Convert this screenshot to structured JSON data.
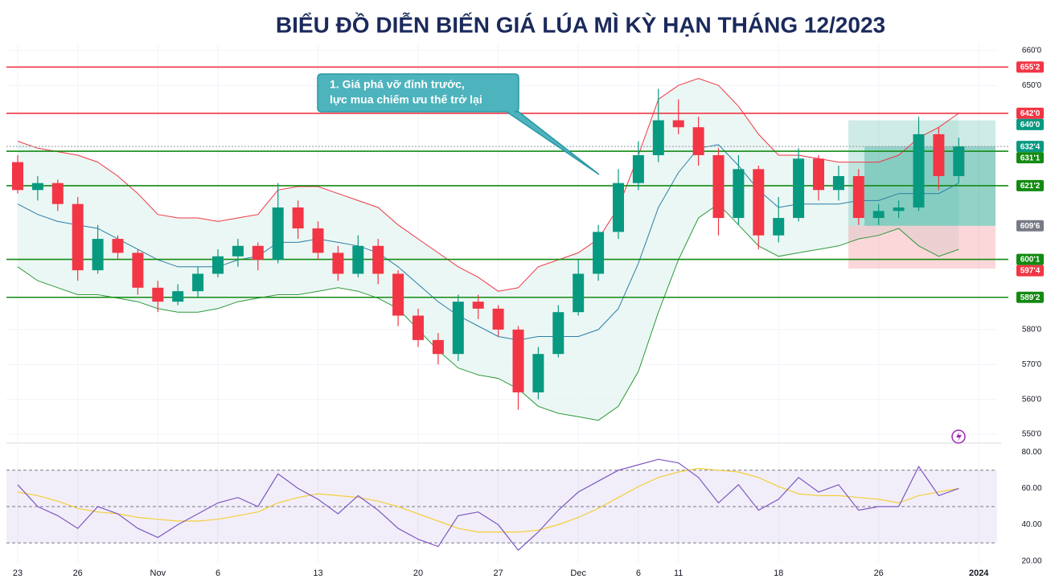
{
  "chart_data": {
    "type": "candlestick",
    "title": "BIỂU ĐỒ DIỄN BIẾN GIÁ LÚA MÌ KỲ HẠN THÁNG 12/2023",
    "annotation": [
      "1. Giá phá vỡ đỉnh trước,",
      "lực mua chiếm ưu thế trở lại"
    ],
    "categories": [
      "23",
      null,
      null,
      "26",
      null,
      null,
      null,
      "Nov",
      null,
      null,
      "6",
      null,
      null,
      null,
      null,
      "13",
      null,
      null,
      null,
      null,
      "20",
      null,
      null,
      null,
      "27",
      null,
      null,
      null,
      "Dec",
      null,
      null,
      "6",
      null,
      "11",
      null,
      null,
      null,
      null,
      "18",
      null,
      null,
      null,
      null,
      "26",
      null,
      null,
      null,
      null,
      "2024",
      null
    ],
    "open": [
      628,
      620,
      622,
      616,
      597,
      606,
      602,
      592,
      588,
      591,
      596,
      601,
      604,
      600,
      615,
      609,
      602,
      596,
      604,
      596,
      584,
      577,
      573,
      588,
      586,
      580,
      562,
      573,
      585,
      596,
      608,
      622,
      630,
      640,
      638,
      630,
      612,
      626,
      607,
      612,
      629,
      620,
      624,
      612,
      614,
      615,
      636,
      624,
      null,
      null
    ],
    "high": [
      630,
      624,
      623,
      618,
      610,
      607,
      603,
      594,
      593,
      598,
      603,
      606,
      605,
      622,
      617,
      611,
      604,
      607,
      606,
      597,
      586,
      579,
      590,
      590,
      587,
      581,
      575,
      587,
      600,
      610,
      626,
      634,
      649,
      646,
      641,
      632,
      630,
      627,
      618,
      632,
      630,
      627,
      626,
      616,
      617,
      641,
      638,
      635,
      null,
      null
    ],
    "low": [
      619,
      617,
      614,
      594,
      596,
      600,
      590,
      585,
      587,
      589,
      595,
      598,
      597,
      599,
      606,
      600,
      594,
      595,
      593,
      581,
      575,
      570,
      571,
      583,
      578,
      557,
      560,
      572,
      584,
      594,
      606,
      620,
      628,
      636,
      627,
      607,
      610,
      603,
      605,
      611,
      617,
      617,
      610,
      610,
      612,
      614,
      620,
      622,
      null,
      null
    ],
    "close": [
      620,
      622,
      616,
      597,
      606,
      602,
      592,
      588,
      591,
      596,
      601,
      604,
      600,
      615,
      609,
      602,
      596,
      604,
      596,
      584,
      577,
      573,
      588,
      586,
      580,
      562,
      573,
      585,
      596,
      608,
      622,
      630,
      640,
      638,
      630,
      612,
      626,
      607,
      612,
      629,
      620,
      624,
      612,
      614,
      615,
      636,
      624,
      632.5,
      null,
      null
    ],
    "up_color": "#089981",
    "down_color": "#f23645",
    "bands": {
      "upper": [
        634,
        632,
        631,
        630,
        628,
        624,
        619,
        613,
        612,
        612,
        611,
        612,
        613,
        620,
        621,
        621,
        619,
        617,
        615,
        610,
        606,
        602,
        598,
        595,
        591,
        592,
        598,
        600,
        602,
        606,
        615,
        630,
        646,
        650,
        652,
        650,
        644,
        636,
        630,
        630,
        629,
        628,
        628,
        628,
        630,
        635,
        638,
        642,
        null,
        null
      ],
      "middle": [
        616,
        613,
        611,
        610,
        609,
        606,
        603,
        600,
        598,
        598,
        598,
        600,
        601,
        605,
        605,
        606,
        605,
        604,
        602,
        598,
        593,
        588,
        584,
        581,
        578,
        577,
        578,
        578,
        578,
        580,
        586,
        599,
        615,
        625,
        632,
        633,
        627,
        620,
        615,
        616,
        616,
        616,
        617,
        617,
        619,
        619,
        619,
        622,
        null,
        null
      ],
      "lower": [
        598,
        594,
        592,
        590,
        590,
        589,
        588,
        586,
        585,
        585,
        586,
        588,
        589,
        590,
        590,
        591,
        592,
        591,
        589,
        586,
        580,
        574,
        569,
        567,
        566,
        563,
        558,
        556,
        555,
        554,
        558,
        568,
        585,
        600,
        612,
        616,
        610,
        604,
        601,
        602,
        603,
        604,
        606,
        607,
        609,
        604,
        601,
        603,
        null,
        null
      ],
      "upper_color": "#f23645",
      "middle_color": "#2a7fa8",
      "lower_color": "#2e9a3a",
      "fill": "#e3f4ef"
    },
    "ylim": [
      547.7,
      661.8
    ],
    "yticks": [
      {
        "value": 660,
        "label": "660'0"
      },
      {
        "value": 650,
        "label": "650'0"
      },
      {
        "value": 580,
        "label": "580'0"
      },
      {
        "value": 570,
        "label": "570'0"
      },
      {
        "value": 560,
        "label": "560'0"
      },
      {
        "value": 550,
        "label": "550'0"
      }
    ],
    "grid": true,
    "levels": [
      {
        "value": 655.25,
        "label": "655'2",
        "color": "#f23645",
        "line": "solid"
      },
      {
        "value": 642,
        "label": "642'0",
        "color": "#f23645",
        "line": "solid"
      },
      {
        "value": 640,
        "label": "640'0",
        "color": "#089981",
        "line": null
      },
      {
        "value": 632.5,
        "label": "632'4",
        "color": "#089981",
        "line": "dotted"
      },
      {
        "value": 631.125,
        "label": "631'1",
        "color": "#138a13",
        "line": "solid"
      },
      {
        "value": 621.25,
        "label": "621'2",
        "color": "#138a13",
        "line": "solid"
      },
      {
        "value": 609.75,
        "label": "609'6",
        "color": "#787b86",
        "line": null
      },
      {
        "value": 600.125,
        "label": "600'1",
        "color": "#138a13",
        "line": "solid"
      },
      {
        "value": 597.5,
        "label": "597'4",
        "color": "#f23645",
        "line": null
      },
      {
        "value": 589.25,
        "label": "589'2",
        "color": "#138a13",
        "line": "solid"
      }
    ],
    "rsi": {
      "type": "line",
      "values": [
        62,
        50,
        45,
        38,
        50,
        46,
        38,
        33,
        40,
        46,
        52,
        55,
        50,
        68,
        60,
        54,
        46,
        56,
        48,
        38,
        32,
        28,
        45,
        47,
        40,
        26,
        36,
        48,
        58,
        64,
        70,
        73,
        76,
        74,
        66,
        52,
        62,
        48,
        54,
        66,
        58,
        62,
        48,
        50,
        50,
        72,
        56,
        60,
        null,
        null
      ],
      "ma": [
        58,
        56,
        53,
        49,
        47,
        46,
        44,
        43,
        42,
        42,
        43,
        45,
        47,
        52,
        55,
        57,
        56,
        55,
        53,
        50,
        46,
        42,
        38,
        36,
        36,
        36,
        37,
        40,
        44,
        49,
        55,
        61,
        66,
        69,
        71,
        70,
        69,
        66,
        61,
        57,
        56,
        56,
        55,
        54,
        52,
        56,
        58,
        60,
        null,
        null
      ],
      "color": "#7e57c2",
      "ma_color": "#f2cf3a",
      "ylim": [
        19,
        84.5
      ],
      "yticks": [
        {
          "value": 80,
          "label": "80.00"
        },
        {
          "value": 60,
          "label": "60.00"
        },
        {
          "value": 40,
          "label": "40.00"
        },
        {
          "value": 20,
          "label": "20.00"
        }
      ],
      "levels": [
        70,
        50,
        30
      ]
    }
  }
}
